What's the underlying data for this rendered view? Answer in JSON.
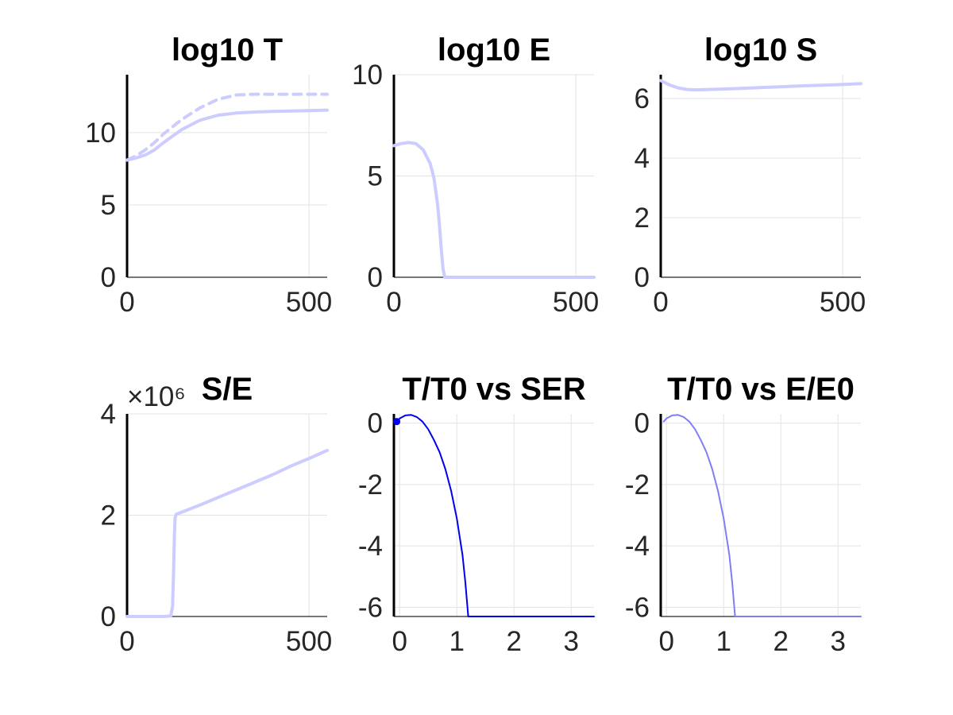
{
  "chart_data": [
    {
      "type": "line",
      "title": "log10 T",
      "xlim": [
        0,
        550
      ],
      "ylim": [
        0,
        14
      ],
      "xticks": [
        0,
        500
      ],
      "yticks": [
        0,
        5,
        10
      ],
      "grid": true,
      "series": [
        {
          "style": "solid",
          "color": "#CCCCFF",
          "x": [
            0,
            25,
            50,
            75,
            100,
            150,
            200,
            250,
            300,
            350,
            400,
            450,
            500,
            550
          ],
          "y": [
            8.1,
            8.25,
            8.45,
            8.8,
            9.3,
            10.2,
            10.85,
            11.2,
            11.35,
            11.42,
            11.46,
            11.49,
            11.52,
            11.55
          ]
        },
        {
          "style": "dashed",
          "color": "#CCCCFF",
          "x": [
            0,
            25,
            50,
            75,
            100,
            150,
            200,
            250,
            300,
            350,
            400,
            450,
            500,
            550
          ],
          "y": [
            8.1,
            8.4,
            8.8,
            9.3,
            9.9,
            10.9,
            11.7,
            12.3,
            12.6,
            12.65,
            12.65,
            12.65,
            12.65,
            12.65
          ]
        }
      ]
    },
    {
      "type": "line",
      "title": "log10 E",
      "xlim": [
        0,
        550
      ],
      "ylim": [
        0,
        10
      ],
      "xticks": [
        0,
        500
      ],
      "yticks": [
        0,
        5,
        10
      ],
      "grid": true,
      "series": [
        {
          "style": "solid",
          "color": "#CCCCFF",
          "x": [
            0,
            20,
            40,
            60,
            80,
            100,
            110,
            120,
            125,
            130,
            135,
            140,
            200,
            300,
            400,
            500,
            550
          ],
          "y": [
            6.5,
            6.6,
            6.65,
            6.6,
            6.3,
            5.6,
            4.9,
            3.6,
            2.6,
            1.4,
            0.4,
            0.0,
            0.0,
            0.0,
            0.0,
            0.0,
            0.0
          ]
        }
      ]
    },
    {
      "type": "line",
      "title": "log10 S",
      "xlim": [
        0,
        550
      ],
      "ylim": [
        0,
        6.8
      ],
      "xticks": [
        0,
        500
      ],
      "yticks": [
        0,
        2,
        4,
        6
      ],
      "grid": true,
      "series": [
        {
          "style": "solid",
          "color": "#CCCCFF",
          "x": [
            0,
            25,
            50,
            75,
            100,
            125,
            150,
            200,
            300,
            400,
            500,
            550
          ],
          "y": [
            6.6,
            6.45,
            6.35,
            6.3,
            6.29,
            6.3,
            6.31,
            6.33,
            6.38,
            6.43,
            6.47,
            6.5
          ]
        }
      ]
    },
    {
      "type": "line",
      "title": "S/E",
      "axis_exponent": "×10⁶",
      "xlim": [
        0,
        550
      ],
      "ylim": [
        0,
        4
      ],
      "xticks": [
        0,
        500
      ],
      "yticks": [
        0,
        2,
        4
      ],
      "grid": true,
      "series": [
        {
          "style": "solid",
          "color": "#CCCCFF",
          "x": [
            0,
            50,
            100,
            120,
            125,
            128,
            130,
            132,
            135,
            150,
            200,
            250,
            300,
            350,
            400,
            450,
            500,
            550
          ],
          "y": [
            0,
            0,
            0,
            0.01,
            0.2,
            0.9,
            1.6,
            1.95,
            2.02,
            2.06,
            2.2,
            2.35,
            2.5,
            2.65,
            2.8,
            2.97,
            3.12,
            3.28
          ]
        }
      ]
    },
    {
      "type": "line",
      "title": "T/T0 vs SER",
      "xlim": [
        -0.1,
        3.4
      ],
      "ylim": [
        -6.3,
        0.3
      ],
      "xticks": [
        0,
        1,
        2,
        3
      ],
      "yticks": [
        0,
        -2,
        -4,
        -6
      ],
      "grid": true,
      "series": [
        {
          "style": "solid",
          "color": "#0000EE",
          "marker_start": true,
          "x": [
            -0.05,
            0.0,
            0.1,
            0.2,
            0.3,
            0.4,
            0.5,
            0.6,
            0.7,
            0.8,
            0.9,
            1.0,
            1.1,
            1.15,
            1.2,
            1.5,
            2.0,
            2.5,
            3.0,
            3.4
          ],
          "y": [
            0.05,
            0.15,
            0.25,
            0.27,
            0.2,
            0.05,
            -0.2,
            -0.55,
            -0.95,
            -1.5,
            -2.2,
            -3.1,
            -4.3,
            -5.2,
            -6.3,
            -6.3,
            -6.3,
            -6.3,
            -6.3,
            -6.3
          ]
        }
      ]
    },
    {
      "type": "line",
      "title": "T/T0 vs E/E0",
      "xlim": [
        -0.1,
        3.4
      ],
      "ylim": [
        -6.3,
        0.3
      ],
      "xticks": [
        0,
        1,
        2,
        3
      ],
      "yticks": [
        0,
        -2,
        -4,
        -6
      ],
      "grid": true,
      "series": [
        {
          "style": "solid",
          "color": "#7F7FF5",
          "x": [
            -0.05,
            0.0,
            0.1,
            0.2,
            0.3,
            0.4,
            0.5,
            0.6,
            0.7,
            0.8,
            0.9,
            1.0,
            1.1,
            1.15,
            1.2,
            1.5,
            2.0,
            2.5,
            3.0,
            3.4
          ],
          "y": [
            0.05,
            0.15,
            0.25,
            0.27,
            0.2,
            0.05,
            -0.2,
            -0.55,
            -0.95,
            -1.5,
            -2.2,
            -3.1,
            -4.3,
            -5.2,
            -6.3,
            -6.3,
            -6.3,
            -6.3,
            -6.3,
            -6.3
          ]
        }
      ]
    }
  ]
}
